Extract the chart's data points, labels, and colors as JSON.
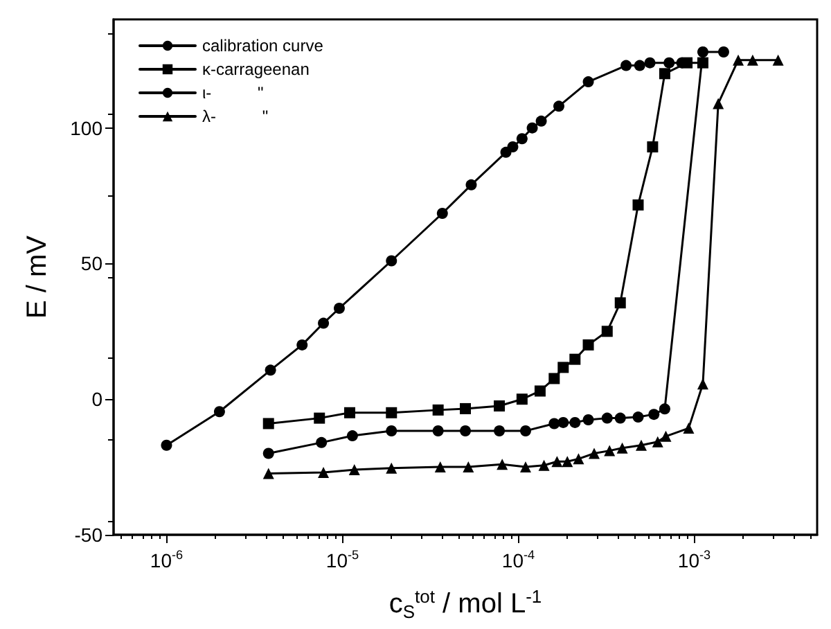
{
  "chart_data": {
    "type": "line",
    "xlabel": "c$_{S}$$^{tot}$ / mol L$^{-1}$",
    "ylabel": "E / mV",
    "log": "x",
    "grid": false,
    "legend": "top left",
    "line_style": "solid",
    "xlim": [
      5e-07,
      0.005
    ],
    "xticks": [
      {
        "value": 1e-06,
        "label": "10$^{-6}$"
      },
      {
        "value": 1e-05,
        "label": "10$^{-5}$"
      },
      {
        "value": 0.0001,
        "label": "10$^{-4}$"
      },
      {
        "value": 0.001,
        "label": "10$^{-3}$"
      }
    ],
    "ylim": [
      -50,
      140
    ],
    "yticks": [
      -50,
      0,
      50,
      100
    ],
    "series": [
      {
        "name": "calibration curve",
        "color": "#000000",
        "marker": "circle",
        "x": [
          1e-06,
          2e-06,
          3.9e-06,
          5.9e-06,
          7.8e-06,
          9.6e-06,
          1.9e-05,
          3.7e-05,
          5.4e-05,
          8.5e-05,
          9.3e-05,
          0.000105,
          0.00012,
          0.000135,
          0.00017,
          0.00025,
          0.00041,
          0.00049,
          0.00056,
          0.00072,
          0.00085
        ],
        "values": [
          -17,
          -4.6,
          10.7,
          20,
          28,
          33.5,
          51,
          68.5,
          79,
          91,
          93,
          96,
          100,
          102.5,
          108,
          117,
          123,
          123,
          124,
          124,
          124
        ]
      },
      {
        "name": "κ-carrageenan",
        "color": "#000000",
        "marker": "square",
        "x": [
          3.8e-06,
          7.4e-06,
          1.1e-05,
          1.9e-05,
          3.5e-05,
          5e-05,
          7.8e-05,
          0.000105,
          0.000133,
          0.00016,
          0.00018,
          0.00021,
          0.00025,
          0.00032,
          0.00038,
          0.00048,
          0.00058,
          0.00068,
          0.00091,
          0.00112
        ],
        "values": [
          -9,
          -7,
          -5,
          -5,
          -4,
          -3.5,
          -2.5,
          0,
          3,
          7.6,
          11.7,
          14.7,
          20,
          25,
          35.5,
          71.6,
          93,
          120,
          124,
          124
        ]
      },
      {
        "name": "ι-          \"",
        "color": "#000000",
        "marker": "circle",
        "x": [
          3.8e-06,
          7.6e-06,
          1.14e-05,
          1.9e-05,
          3.5e-05,
          5e-05,
          7.8e-05,
          0.00011,
          0.00016,
          0.00018,
          0.00021,
          0.00025,
          0.00032,
          0.00038,
          0.00048,
          0.00059,
          0.00068,
          0.00112,
          0.00147
        ],
        "values": [
          -20,
          -16,
          -13.5,
          -11.7,
          -11.7,
          -11.7,
          -11.7,
          -11.7,
          -9,
          -8.6,
          -8.6,
          -7.6,
          -7,
          -7,
          -6.6,
          -5.6,
          -3.6,
          128,
          128
        ]
      },
      {
        "name": "λ-          \"",
        "color": "#000000",
        "marker": "triangle",
        "x": [
          3.8e-06,
          7.8e-06,
          1.17e-05,
          1.9e-05,
          3.6e-05,
          5.2e-05,
          8.1e-05,
          0.00011,
          0.00014,
          0.000166,
          0.00019,
          0.00022,
          0.00027,
          0.00033,
          0.00039,
          0.0005,
          0.00062,
          0.00069,
          0.00093,
          0.00112,
          0.00137,
          0.00178,
          0.00215,
          0.003
        ],
        "values": [
          -27.4,
          -27,
          -26,
          -25.4,
          -25,
          -25,
          -24,
          -25,
          -24.4,
          -23,
          -23,
          -22,
          -20,
          -19,
          -18,
          -17,
          -15.7,
          -13.7,
          -10.7,
          5.6,
          109,
          125,
          125,
          125
        ]
      }
    ]
  }
}
